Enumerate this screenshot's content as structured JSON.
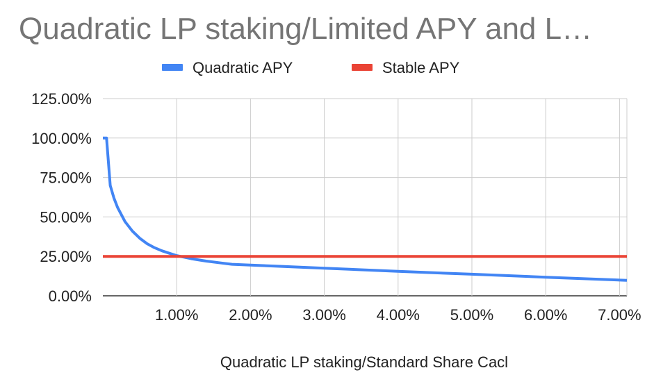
{
  "chart_data": {
    "type": "line",
    "title": "Quadratic LP staking/Limited APY and L…",
    "xlabel": "Quadratic LP staking/Standard Share Cacl",
    "ylabel": "",
    "xlim": [
      0.0,
      7.1
    ],
    "ylim": [
      0,
      125
    ],
    "x_ticks": [
      {
        "value": 1,
        "label": "1.00%"
      },
      {
        "value": 2,
        "label": "2.00%"
      },
      {
        "value": 3,
        "label": "3.00%"
      },
      {
        "value": 4,
        "label": "4.00%"
      },
      {
        "value": 5,
        "label": "5.00%"
      },
      {
        "value": 6,
        "label": "6.00%"
      },
      {
        "value": 7,
        "label": "7.00%"
      }
    ],
    "y_ticks": [
      {
        "value": 0,
        "label": "0.00%"
      },
      {
        "value": 25,
        "label": "25.00%"
      },
      {
        "value": 50,
        "label": "50.00%"
      },
      {
        "value": 75,
        "label": "75.00%"
      },
      {
        "value": 100,
        "label": "100.00%"
      },
      {
        "value": 125,
        "label": "125.00%"
      }
    ],
    "grid": true,
    "legend_position": "top",
    "series": [
      {
        "name": "Quadratic APY",
        "color": "#4285f4",
        "points": [
          [
            0.0,
            100
          ],
          [
            0.05,
            100
          ],
          [
            0.1,
            70
          ],
          [
            0.15,
            62
          ],
          [
            0.2,
            56
          ],
          [
            0.3,
            47
          ],
          [
            0.4,
            41
          ],
          [
            0.5,
            36.5
          ],
          [
            0.6,
            33
          ],
          [
            0.7,
            30.5
          ],
          [
            0.8,
            28.5
          ],
          [
            0.9,
            27
          ],
          [
            1.0,
            25.5
          ],
          [
            1.2,
            23.5
          ],
          [
            1.4,
            22
          ],
          [
            1.6,
            20.8
          ],
          [
            1.75,
            20
          ],
          [
            2.0,
            19.5
          ],
          [
            3.0,
            17.5
          ],
          [
            4.0,
            15.5
          ],
          [
            5.0,
            13.7
          ],
          [
            6.0,
            11.8
          ],
          [
            7.1,
            9.8
          ]
        ]
      },
      {
        "name": "Stable APY",
        "color": "#ea4335",
        "points": [
          [
            0.0,
            25
          ],
          [
            7.1,
            25
          ]
        ]
      }
    ]
  }
}
